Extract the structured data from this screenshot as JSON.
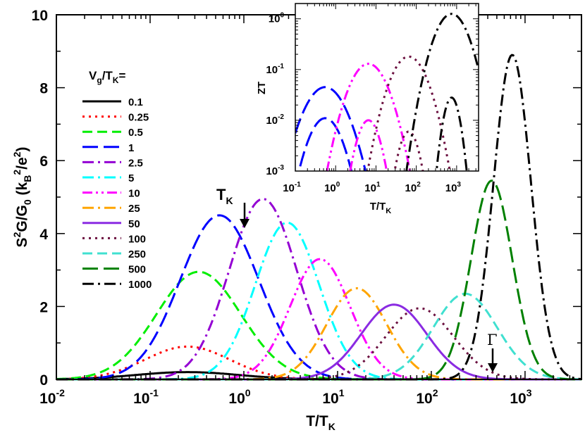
{
  "chart_data": [
    {
      "type": "line",
      "xscale": "log",
      "xlim": [
        0.01,
        4000
      ],
      "ylim": [
        0,
        10
      ],
      "xlabel": "T/T_K",
      "ylabel": "S²G/G₀ (k_B²/e²)",
      "x_ticks": [
        {
          "base": "10",
          "exp": "-2"
        },
        {
          "base": "10",
          "exp": "-1"
        },
        {
          "base": "10",
          "exp": "0"
        },
        {
          "base": "10",
          "exp": "1"
        },
        {
          "base": "10",
          "exp": "2"
        },
        {
          "base": "10",
          "exp": "3"
        }
      ],
      "y_ticks": [
        "0",
        "2",
        "4",
        "6",
        "8",
        "10"
      ],
      "legend_title": "V_g/T_K=",
      "legend_position": "top-left",
      "series": [
        {
          "name": "0.1",
          "color": "#000000",
          "dash": "solid",
          "peak_x": 0.25,
          "peak_y": 0.2,
          "width": 0.55
        },
        {
          "name": "0.25",
          "color": "#ff0000",
          "dash": "dot",
          "peak_x": 0.25,
          "peak_y": 0.9,
          "width": 0.45
        },
        {
          "name": "0.5",
          "color": "#00ee00",
          "dash": "dash",
          "peak_x": 0.33,
          "peak_y": 2.95,
          "width": 0.45
        },
        {
          "name": "1",
          "color": "#0000ff",
          "dash": "longdash",
          "peak_x": 0.55,
          "peak_y": 4.5,
          "width": 0.42
        },
        {
          "name": "2.5",
          "color": "#9400d3",
          "dash": "dashdot",
          "peak_x": 1.6,
          "peak_y": 4.95,
          "width": 0.36
        },
        {
          "name": "5",
          "color": "#00ffff",
          "dash": "dashdot",
          "peak_x": 2.9,
          "peak_y": 4.3,
          "width": 0.34
        },
        {
          "name": "10",
          "color": "#ff00ff",
          "dash": "dashdotdot",
          "peak_x": 6.5,
          "peak_y": 3.3,
          "width": 0.32
        },
        {
          "name": "25",
          "color": "#ffa500",
          "dash": "dashdot",
          "peak_x": 16,
          "peak_y": 2.5,
          "width": 0.32
        },
        {
          "name": "50",
          "color": "#8a2be2",
          "dash": "solid",
          "peak_x": 40,
          "peak_y": 2.05,
          "width": 0.35
        },
        {
          "name": "100",
          "color": "#6b0f3f",
          "dash": "dot",
          "peak_x": 75,
          "peak_y": 1.95,
          "width": 0.36
        },
        {
          "name": "250",
          "color": "#40e0d0",
          "dash": "dash",
          "peak_x": 230,
          "peak_y": 2.35,
          "width": 0.34
        },
        {
          "name": "500",
          "color": "#008000",
          "dash": "longdash",
          "peak_x": 440,
          "peak_y": 5.45,
          "width": 0.22
        },
        {
          "name": "1000",
          "color": "#000000",
          "dash": "dashdot",
          "peak_x": 730,
          "peak_y": 8.9,
          "width": 0.2
        }
      ],
      "annotations": [
        {
          "text": "T_K",
          "x": 1.0,
          "y": 4.2,
          "arrow": "down"
        },
        {
          "text": "Γ",
          "x": 400,
          "y": 0.2,
          "arrow": "down"
        }
      ]
    },
    {
      "type": "line",
      "role": "inset",
      "xscale": "log",
      "yscale": "log",
      "xlim": [
        0.1,
        3500
      ],
      "ylim": [
        0.001,
        2
      ],
      "xlabel": "T/T_K",
      "ylabel": "ZT",
      "x_ticks": [
        {
          "base": "10",
          "exp": "-1"
        },
        {
          "base": "10",
          "exp": "0"
        },
        {
          "base": "10",
          "exp": "1"
        },
        {
          "base": "10",
          "exp": "2"
        },
        {
          "base": "10",
          "exp": "3"
        }
      ],
      "y_ticks": [
        {
          "base": "10",
          "exp": "-3"
        },
        {
          "base": "10",
          "exp": "-2"
        },
        {
          "base": "10",
          "exp": "-1"
        },
        {
          "base": "10",
          "exp": "0"
        }
      ],
      "series": [
        {
          "name": "1 (upper)",
          "ref": "1",
          "peak_x": 0.55,
          "peak_y": 0.045,
          "width": 0.55
        },
        {
          "name": "1 (lower)",
          "ref": "1",
          "peak_x": 0.55,
          "peak_y": 0.011,
          "width": 0.45
        },
        {
          "name": "10 (upper)",
          "ref": "10",
          "peak_x": 6.5,
          "peak_y": 0.13,
          "width": 0.5
        },
        {
          "name": "10 (lower)",
          "ref": "10",
          "peak_x": 6.5,
          "peak_y": 0.01,
          "width": 0.32
        },
        {
          "name": "100 (upper)",
          "ref": "100",
          "peak_x": 65,
          "peak_y": 0.18,
          "width": 0.48
        },
        {
          "name": "100 (lower)",
          "ref": "100",
          "peak_x": 65,
          "peak_y": 0.006,
          "width": 0.28
        },
        {
          "name": "1000 (upper)",
          "ref": "1000",
          "peak_x": 750,
          "peak_y": 1.25,
          "width": 0.45
        },
        {
          "name": "1000 (lower)",
          "ref": "1000",
          "peak_x": 750,
          "peak_y": 0.028,
          "width": 0.22
        }
      ]
    }
  ]
}
